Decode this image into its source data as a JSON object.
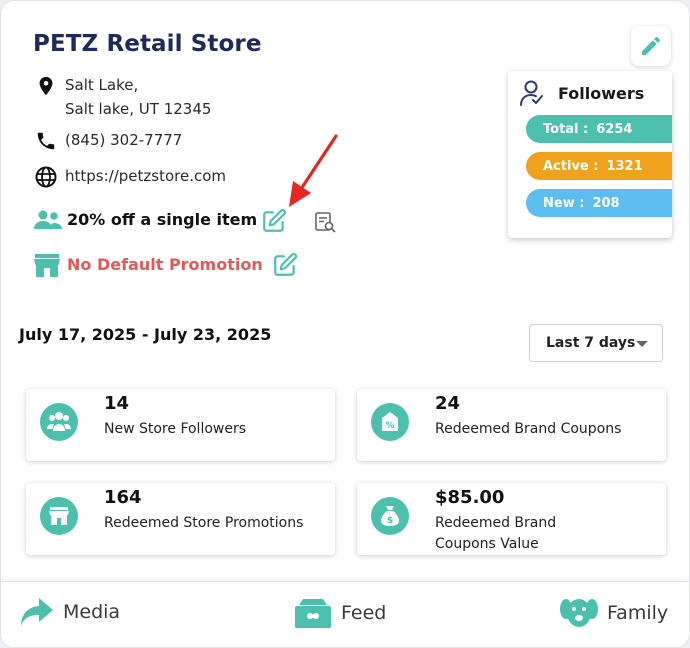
{
  "store": {
    "name": "PETZ Retail Store",
    "address_line1": "Salt Lake,",
    "address_line2": "Salt lake, UT 12345",
    "phone": "(845) 302-7777",
    "website": "https://petzstore.com",
    "promotion": "20% off a single item",
    "default_promotion": "No Default Promotion"
  },
  "followers": {
    "title": "Followers",
    "total_label": "Total :",
    "total_value": "6254",
    "active_label": "Active :",
    "active_value": "1321",
    "new_label": "New :",
    "new_value": "208"
  },
  "date_range": "July 17, 2025 - July 23, 2025",
  "period_select": {
    "value": "Last 7 days"
  },
  "stats": [
    {
      "value": "14",
      "label": "New Store Followers"
    },
    {
      "value": "24",
      "label": "Redeemed Brand Coupons"
    },
    {
      "value": "164",
      "label": "Redeemed Store Promotions"
    },
    {
      "value": "$85.00",
      "label": "Redeemed Brand Coupons Value"
    }
  ],
  "nav": {
    "media": "Media",
    "feed": "Feed",
    "family": "Family"
  },
  "colors": {
    "teal": "#4dbfad",
    "orange": "#f0a21c",
    "blue": "#5bbdf0",
    "title_navy": "#1f2a5a",
    "alert_red": "#e05a5a",
    "arrow_red": "#e52620"
  },
  "icons": [
    "location-pin-icon",
    "phone-icon",
    "globe-icon",
    "people-icon",
    "edit-icon",
    "search-document-icon",
    "storefront-icon",
    "pencil-icon",
    "follower-check-icon",
    "share-arrow-icon",
    "pet-bowl-icon",
    "dog-face-icon",
    "money-bag-icon",
    "coupon-tag-icon"
  ]
}
